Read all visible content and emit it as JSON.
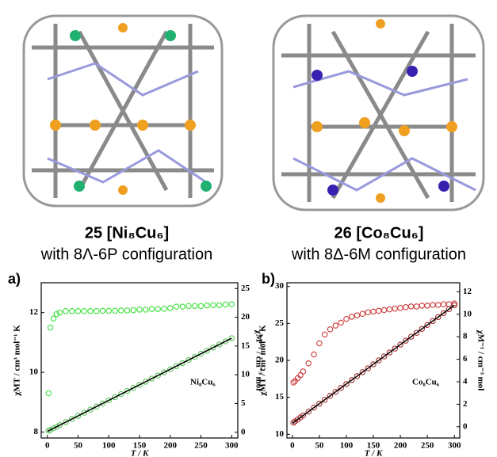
{
  "figure": {
    "captions": [
      {
        "label": "25 [Ni₈Cu₆]",
        "config": "with 8Λ-6P configuration"
      },
      {
        "label": "26 [Co₈Cu₆]",
        "config": "with 8Δ-6M configuration"
      }
    ]
  },
  "chart_data": [
    {
      "type": "scatter",
      "panel": "a)",
      "annotation": "Ni₈Cu₆",
      "xlabel": "T / K",
      "ylabel": "χMT / cm³ mol⁻¹ K",
      "y2label": "χM⁻¹ / cm⁻³ mol",
      "xlim": [
        -10,
        310
      ],
      "xticks": [
        0,
        50,
        100,
        150,
        200,
        250,
        300
      ],
      "ylim": [
        7.8,
        13.0
      ],
      "yticks": [
        8,
        10,
        12
      ],
      "y2lim": [
        -1,
        26
      ],
      "y2ticks": [
        0,
        5,
        10,
        15,
        20,
        25
      ],
      "x": [
        2,
        5,
        10,
        15,
        20,
        30,
        40,
        50,
        60,
        70,
        80,
        90,
        100,
        110,
        120,
        130,
        140,
        150,
        160,
        170,
        180,
        190,
        200,
        210,
        220,
        230,
        240,
        250,
        260,
        270,
        280,
        290,
        300
      ],
      "series": [
        {
          "color": "#3ee03e",
          "style": "markers",
          "values": [
            9.3,
            11.5,
            11.8,
            11.95,
            12.0,
            12.05,
            12.05,
            12.05,
            12.05,
            12.05,
            12.05,
            12.06,
            12.06,
            12.06,
            12.07,
            12.07,
            12.08,
            12.1,
            12.1,
            12.12,
            12.12,
            12.13,
            12.15,
            12.2,
            12.2,
            12.22,
            12.22,
            12.22,
            12.24,
            12.25,
            12.25,
            12.27,
            12.28
          ]
        },
        {
          "color": "#5fc85f",
          "style": "markers",
          "axis": "y2",
          "values": [
            0.26,
            0.42,
            0.69,
            0.96,
            1.23,
            1.77,
            2.31,
            2.85,
            3.39,
            3.93,
            4.47,
            5.01,
            5.55,
            6.09,
            6.63,
            7.17,
            7.71,
            8.25,
            8.79,
            9.33,
            9.87,
            10.41,
            10.95,
            11.49,
            12.03,
            12.57,
            13.11,
            13.65,
            14.19,
            14.73,
            15.27,
            15.81,
            16.35
          ]
        },
        {
          "color": "#000000",
          "style": "line",
          "axis": "y2",
          "x": [
            0,
            300
          ],
          "values": [
            0.15,
            16.35
          ]
        }
      ]
    },
    {
      "type": "scatter",
      "panel": "b)",
      "annotation": "Co₈Cu₆",
      "xlabel": "T / K",
      "ylabel": "χMT / cm³ mol⁻¹ K",
      "y2label": "χM⁻¹ / cm⁻³ mol",
      "xlim": [
        -10,
        310
      ],
      "xticks": [
        0,
        50,
        100,
        150,
        200,
        250,
        300
      ],
      "ylim": [
        9.5,
        30.5
      ],
      "yticks": [
        10,
        15,
        20,
        25,
        30
      ],
      "y2lim": [
        -1,
        12.8
      ],
      "y2ticks": [
        0,
        2,
        4,
        6,
        8,
        10,
        12
      ],
      "x": [
        2,
        5,
        10,
        15,
        20,
        30,
        40,
        50,
        60,
        70,
        80,
        90,
        100,
        110,
        120,
        130,
        140,
        150,
        160,
        170,
        180,
        190,
        200,
        210,
        220,
        230,
        240,
        250,
        260,
        270,
        280,
        290,
        300
      ],
      "series": [
        {
          "color": "#cc3a3a",
          "style": "markers",
          "values": [
            17.0,
            17.2,
            17.6,
            18.0,
            18.5,
            19.6,
            20.8,
            22.3,
            23.5,
            24.2,
            24.7,
            25.1,
            25.6,
            25.9,
            26.1,
            26.3,
            26.5,
            26.6,
            26.7,
            26.8,
            26.9,
            27.0,
            27.1,
            27.2,
            27.3,
            27.3,
            27.4,
            27.4,
            27.5,
            27.5,
            27.6,
            27.6,
            27.7
          ]
        },
        {
          "color": "#a83030",
          "style": "markers",
          "axis": "y2",
          "values": [
            0.37,
            0.48,
            0.65,
            0.83,
            1.0,
            1.35,
            1.7,
            2.05,
            2.4,
            2.75,
            3.1,
            3.45,
            3.8,
            4.15,
            4.5,
            4.85,
            5.2,
            5.55,
            5.9,
            6.25,
            6.6,
            6.95,
            7.3,
            7.65,
            8.0,
            8.35,
            8.7,
            9.05,
            9.4,
            9.75,
            10.1,
            10.45,
            10.8
          ]
        },
        {
          "color": "#000000",
          "style": "line",
          "axis": "y2",
          "x": [
            0,
            300
          ],
          "values": [
            0.3,
            10.8
          ]
        }
      ]
    }
  ]
}
